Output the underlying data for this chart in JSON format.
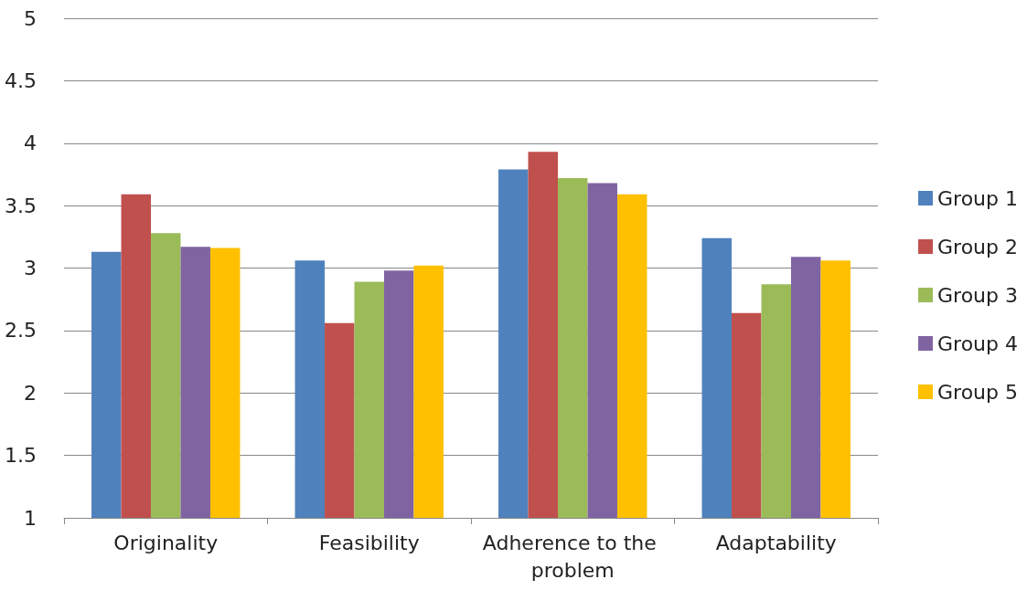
{
  "chart_data": {
    "type": "bar",
    "categories": [
      "Originality",
      "Feasibility",
      "Adherence to the problem",
      "Adaptability"
    ],
    "series": [
      {
        "name": "Group 1",
        "color": "#4f81bd",
        "values": [
          3.13,
          3.06,
          3.79,
          3.24
        ]
      },
      {
        "name": "Group 2",
        "color": "#c0504d",
        "values": [
          3.59,
          2.56,
          3.93,
          2.64
        ]
      },
      {
        "name": "Group 3",
        "color": "#9bbb59",
        "values": [
          3.28,
          2.89,
          3.72,
          2.87
        ]
      },
      {
        "name": "Group 4",
        "color": "#8064a2",
        "values": [
          3.17,
          2.98,
          3.68,
          3.09
        ]
      },
      {
        "name": "Group 5",
        "color": "#ffc000",
        "values": [
          3.16,
          3.02,
          3.59,
          3.06
        ]
      }
    ],
    "ylim": [
      1,
      5
    ],
    "yticks": [
      1,
      1.5,
      2,
      2.5,
      3,
      3.5,
      4,
      4.5,
      5
    ],
    "grid": "y",
    "legend": "right"
  }
}
